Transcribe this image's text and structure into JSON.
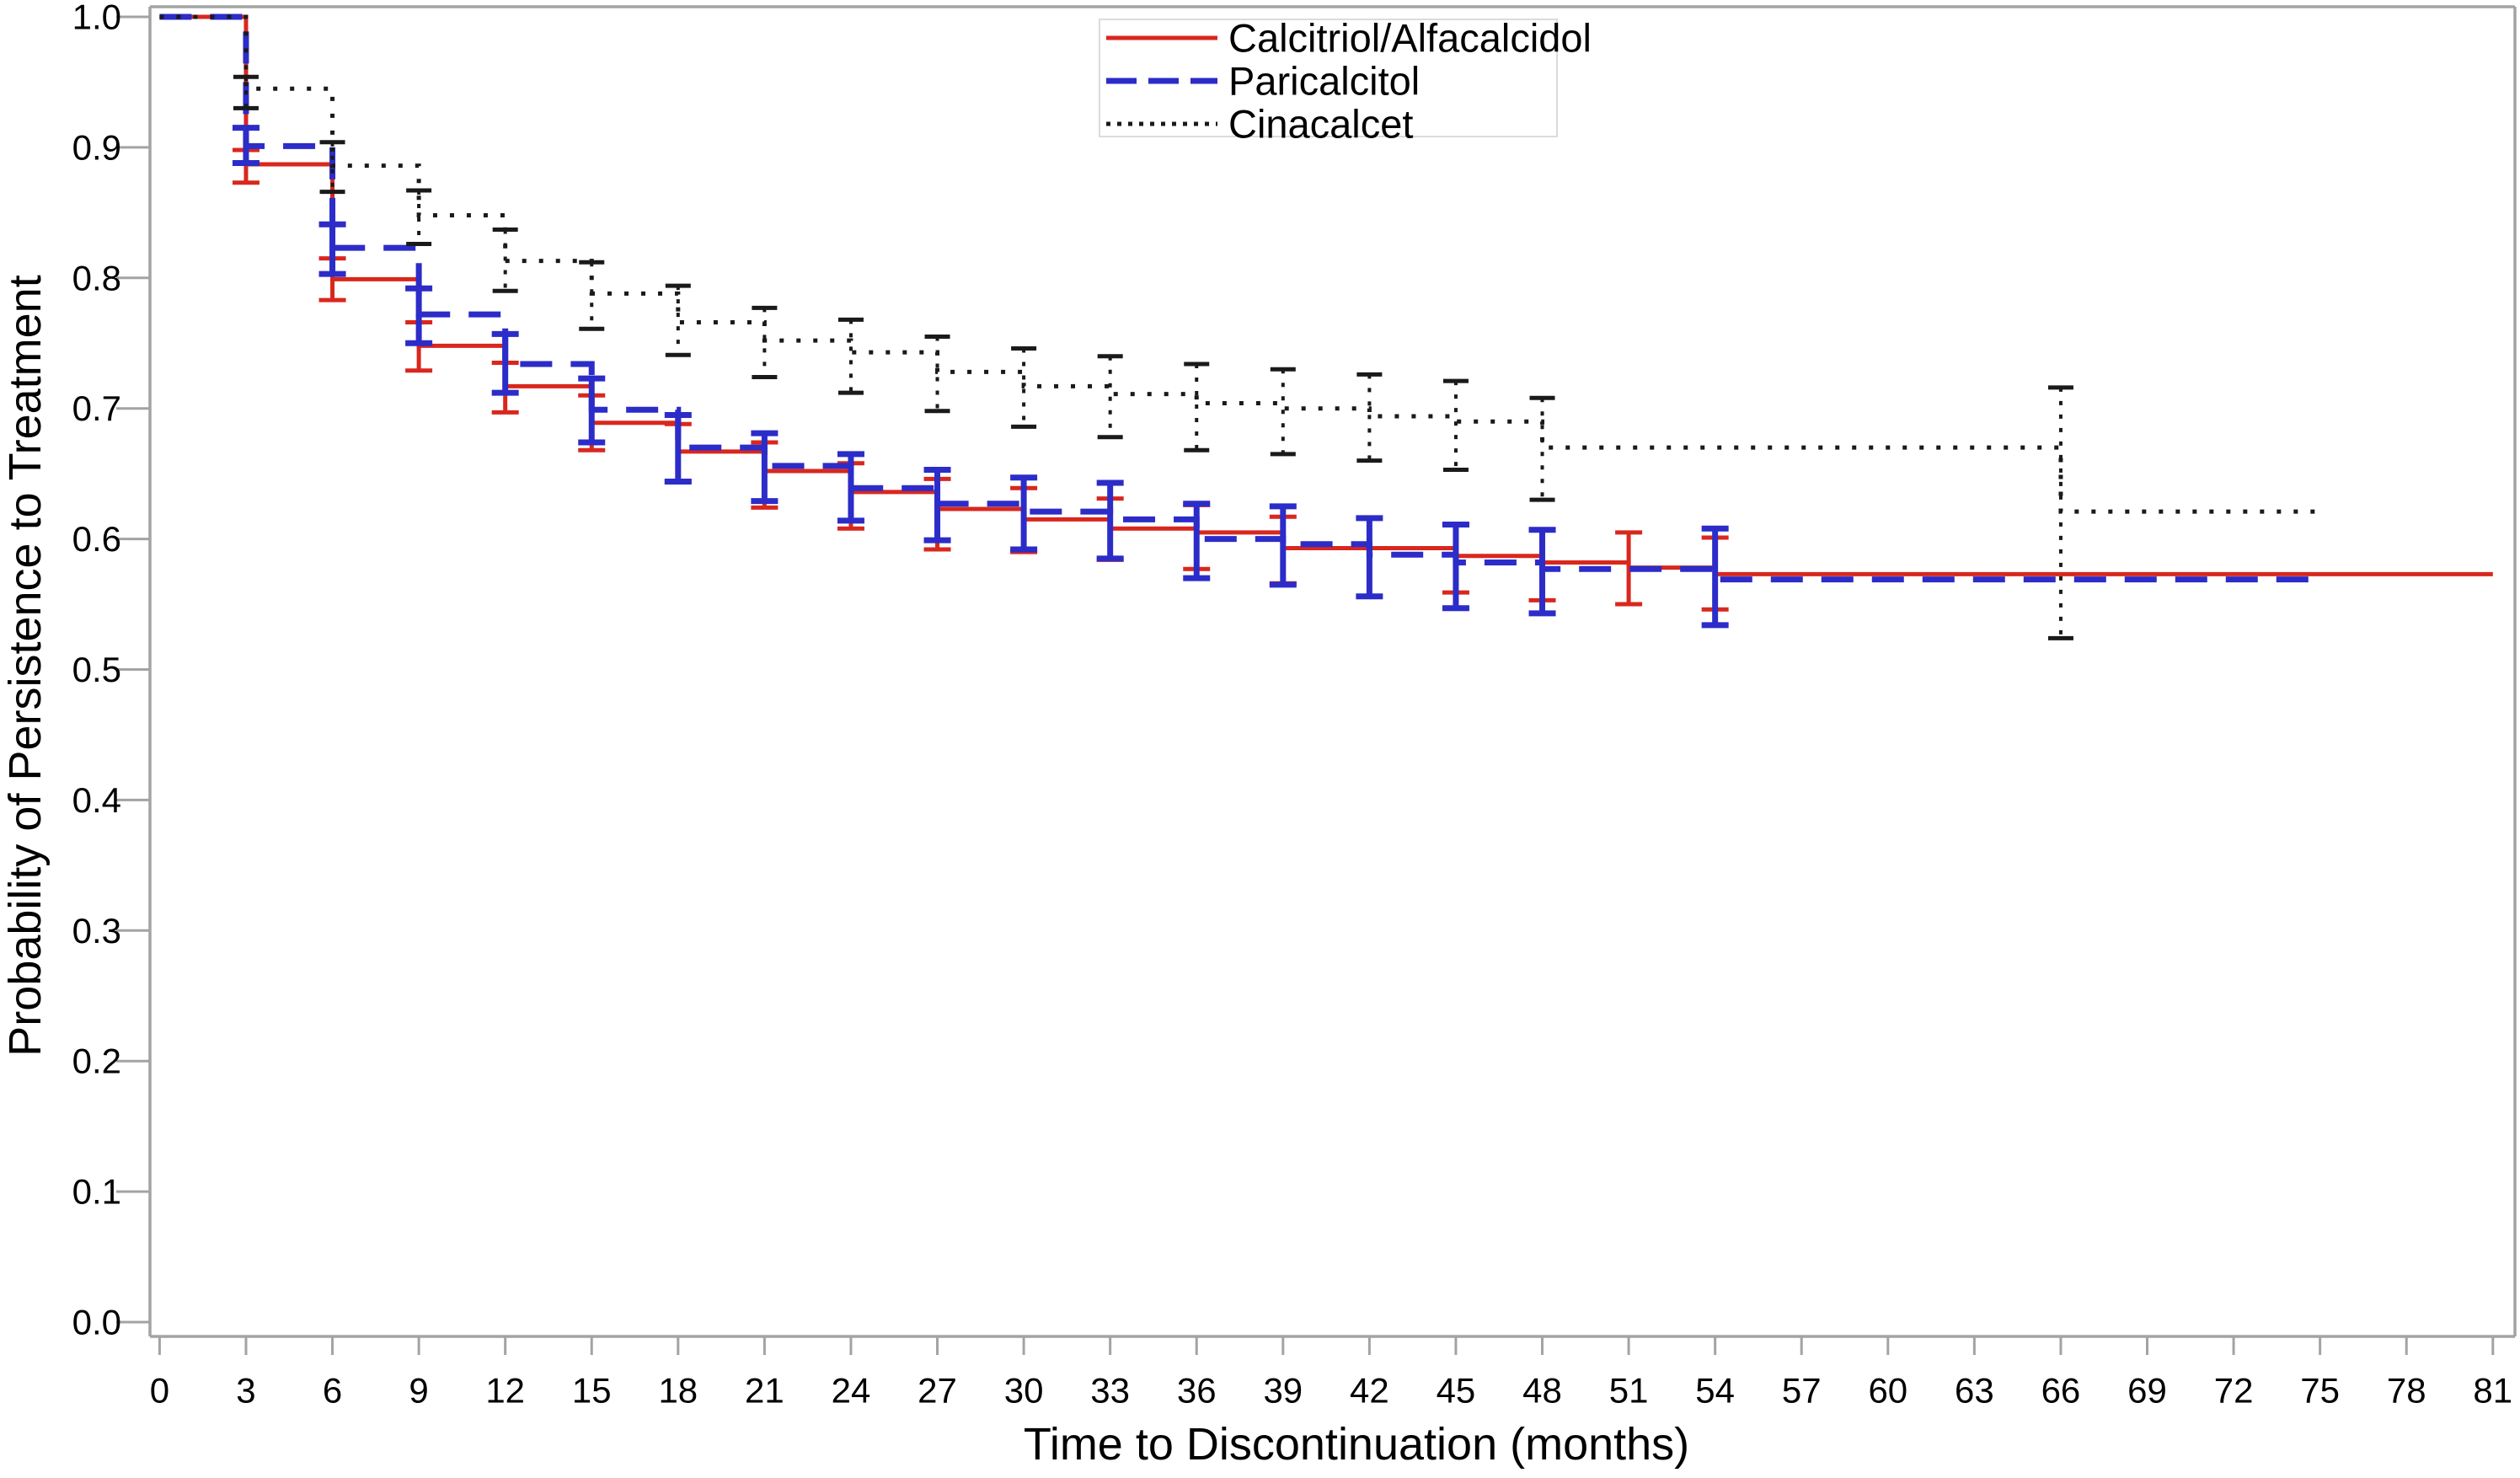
{
  "chart_data": {
    "type": "line",
    "subtype": "kaplan-meier-step-with-error-bars",
    "title": "",
    "xlabel": "Time to Discontinuation (months)",
    "ylabel": "Probability of Persistence to Treatment",
    "xlim": [
      0,
      81
    ],
    "ylim": [
      0.0,
      1.0
    ],
    "grid": false,
    "legend_position": "top-center-inside",
    "x_ticks": [
      {
        "v": 0,
        "label": "0"
      },
      {
        "v": 3,
        "label": "3"
      },
      {
        "v": 6,
        "label": "6"
      },
      {
        "v": 9,
        "label": "9"
      },
      {
        "v": 12,
        "label": "12"
      },
      {
        "v": 15,
        "label": "15"
      },
      {
        "v": 18,
        "label": "18"
      },
      {
        "v": 21,
        "label": "21"
      },
      {
        "v": 24,
        "label": "24"
      },
      {
        "v": 27,
        "label": "27"
      },
      {
        "v": 30,
        "label": "30"
      },
      {
        "v": 33,
        "label": "33"
      },
      {
        "v": 36,
        "label": "36"
      },
      {
        "v": 39,
        "label": "39"
      },
      {
        "v": 42,
        "label": "42"
      },
      {
        "v": 45,
        "label": "45"
      },
      {
        "v": 48,
        "label": "48"
      },
      {
        "v": 51,
        "label": "51"
      },
      {
        "v": 54,
        "label": "54"
      },
      {
        "v": 57,
        "label": "57"
      },
      {
        "v": 60,
        "label": "60"
      },
      {
        "v": 63,
        "label": "63"
      },
      {
        "v": 66,
        "label": "66"
      },
      {
        "v": 69,
        "label": "69"
      },
      {
        "v": 72,
        "label": "72"
      },
      {
        "v": 75,
        "label": "75"
      },
      {
        "v": 78,
        "label": "78"
      },
      {
        "v": 81,
        "label": "81"
      }
    ],
    "y_ticks": [
      {
        "v": 1.0,
        "label": "1.0"
      },
      {
        "v": 0.9,
        "label": "0.9"
      },
      {
        "v": 0.8,
        "label": "0.8"
      },
      {
        "v": 0.7,
        "label": "0.7"
      },
      {
        "v": 0.6,
        "label": "0.6"
      },
      {
        "v": 0.5,
        "label": "0.5"
      },
      {
        "v": 0.4,
        "label": "0.4"
      },
      {
        "v": 0.3,
        "label": "0.3"
      },
      {
        "v": 0.2,
        "label": "0.2"
      },
      {
        "v": 0.1,
        "label": "0.1"
      },
      {
        "v": 0.0,
        "label": "0.0"
      }
    ],
    "series": [
      {
        "name": "Calcitriol/Alfacalcidol",
        "color": "#D9271E",
        "style": "solid",
        "end_month": 81,
        "points": [
          {
            "t": 0,
            "s": 1.0
          },
          {
            "t": 3,
            "s": 0.887,
            "lo": 0.873,
            "hi": 0.898
          },
          {
            "t": 6,
            "s": 0.799,
            "lo": 0.783,
            "hi": 0.815
          },
          {
            "t": 9,
            "s": 0.748,
            "lo": 0.729,
            "hi": 0.766
          },
          {
            "t": 12,
            "s": 0.717,
            "lo": 0.697,
            "hi": 0.735
          },
          {
            "t": 15,
            "s": 0.689,
            "lo": 0.668,
            "hi": 0.71
          },
          {
            "t": 18,
            "s": 0.667,
            "lo": 0.644,
            "hi": 0.688
          },
          {
            "t": 21,
            "s": 0.652,
            "lo": 0.624,
            "hi": 0.674
          },
          {
            "t": 24,
            "s": 0.636,
            "lo": 0.608,
            "hi": 0.658
          },
          {
            "t": 27,
            "s": 0.623,
            "lo": 0.592,
            "hi": 0.646
          },
          {
            "t": 30,
            "s": 0.615,
            "lo": 0.59,
            "hi": 0.639
          },
          {
            "t": 33,
            "s": 0.608,
            "lo": 0.584,
            "hi": 0.631
          },
          {
            "t": 36,
            "s": 0.605,
            "lo": 0.577,
            "hi": 0.626
          },
          {
            "t": 39,
            "s": 0.593,
            "lo": 0.566,
            "hi": 0.617
          },
          {
            "t": 45,
            "s": 0.587,
            "lo": 0.559,
            "hi": 0.611
          },
          {
            "t": 48,
            "s": 0.582,
            "lo": 0.553,
            "hi": 0.607
          },
          {
            "t": 51,
            "s": 0.578,
            "lo": 0.55,
            "hi": 0.605
          },
          {
            "t": 54,
            "s": 0.573,
            "lo": 0.546,
            "hi": 0.601
          }
        ]
      },
      {
        "name": "Paricalcitol",
        "color": "#2C2CC9",
        "style": "dashed",
        "end_month": 75,
        "points": [
          {
            "t": 0,
            "s": 1.0
          },
          {
            "t": 3,
            "s": 0.901,
            "lo": 0.888,
            "hi": 0.915
          },
          {
            "t": 6,
            "s": 0.823,
            "lo": 0.803,
            "hi": 0.841
          },
          {
            "t": 9,
            "s": 0.772,
            "lo": 0.75,
            "hi": 0.792
          },
          {
            "t": 12,
            "s": 0.734,
            "lo": 0.712,
            "hi": 0.757
          },
          {
            "t": 15,
            "s": 0.699,
            "lo": 0.674,
            "hi": 0.723
          },
          {
            "t": 18,
            "s": 0.67,
            "lo": 0.644,
            "hi": 0.695
          },
          {
            "t": 21,
            "s": 0.656,
            "lo": 0.629,
            "hi": 0.681
          },
          {
            "t": 24,
            "s": 0.639,
            "lo": 0.614,
            "hi": 0.665
          },
          {
            "t": 27,
            "s": 0.627,
            "lo": 0.599,
            "hi": 0.653
          },
          {
            "t": 30,
            "s": 0.621,
            "lo": 0.592,
            "hi": 0.647
          },
          {
            "t": 33,
            "s": 0.615,
            "lo": 0.585,
            "hi": 0.643
          },
          {
            "t": 36,
            "s": 0.6,
            "lo": 0.57,
            "hi": 0.627
          },
          {
            "t": 39,
            "s": 0.596,
            "lo": 0.565,
            "hi": 0.625
          },
          {
            "t": 42,
            "s": 0.588,
            "lo": 0.556,
            "hi": 0.616
          },
          {
            "t": 45,
            "s": 0.582,
            "lo": 0.547,
            "hi": 0.611
          },
          {
            "t": 48,
            "s": 0.577,
            "lo": 0.543,
            "hi": 0.607
          },
          {
            "t": 54,
            "s": 0.569,
            "lo": 0.534,
            "hi": 0.608
          }
        ]
      },
      {
        "name": "Cinacalcet",
        "color": "#1A1A1A",
        "style": "dotted",
        "end_month": 75,
        "points": [
          {
            "t": 0,
            "s": 1.0
          },
          {
            "t": 3,
            "s": 0.945,
            "lo": 0.93,
            "hi": 0.954
          },
          {
            "t": 6,
            "s": 0.886,
            "lo": 0.866,
            "hi": 0.904
          },
          {
            "t": 9,
            "s": 0.848,
            "lo": 0.826,
            "hi": 0.867
          },
          {
            "t": 12,
            "s": 0.813,
            "lo": 0.79,
            "hi": 0.837
          },
          {
            "t": 15,
            "s": 0.788,
            "lo": 0.761,
            "hi": 0.812
          },
          {
            "t": 18,
            "s": 0.766,
            "lo": 0.741,
            "hi": 0.794
          },
          {
            "t": 21,
            "s": 0.752,
            "lo": 0.724,
            "hi": 0.777
          },
          {
            "t": 24,
            "s": 0.743,
            "lo": 0.712,
            "hi": 0.768
          },
          {
            "t": 27,
            "s": 0.728,
            "lo": 0.698,
            "hi": 0.755
          },
          {
            "t": 30,
            "s": 0.717,
            "lo": 0.686,
            "hi": 0.746
          },
          {
            "t": 33,
            "s": 0.711,
            "lo": 0.678,
            "hi": 0.74
          },
          {
            "t": 36,
            "s": 0.704,
            "lo": 0.668,
            "hi": 0.734
          },
          {
            "t": 39,
            "s": 0.7,
            "lo": 0.665,
            "hi": 0.73
          },
          {
            "t": 42,
            "s": 0.694,
            "lo": 0.66,
            "hi": 0.726
          },
          {
            "t": 45,
            "s": 0.69,
            "lo": 0.653,
            "hi": 0.721
          },
          {
            "t": 48,
            "s": 0.67,
            "lo": 0.63,
            "hi": 0.708
          },
          {
            "t": 66,
            "s": 0.621,
            "lo": 0.524,
            "hi": 0.716
          }
        ]
      }
    ],
    "colors": {
      "axis": "#A3A3A3",
      "tick_text": "#000000",
      "legend_border": "#DBDBDB",
      "background": "#FFFFFF"
    }
  }
}
